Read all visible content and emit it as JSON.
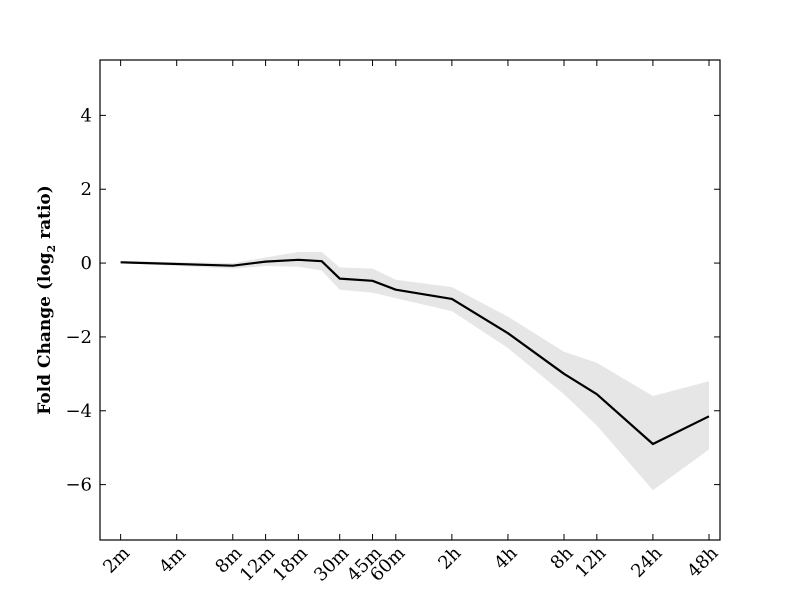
{
  "chart_data": {
    "type": "line",
    "title": "",
    "xlabel": "",
    "ylabel": "Fold Change (log",
    "ylabel_sub": "2",
    "ylabel_tail": " ratio)",
    "x": [
      "2m",
      "4m",
      "8m",
      "12m",
      "18m",
      "30m",
      "45m",
      "60m",
      "2h",
      "4h",
      "8h",
      "12h",
      "24h",
      "48h"
    ],
    "x_minutes": [
      2,
      4,
      8,
      12,
      18,
      30,
      45,
      60,
      120,
      240,
      480,
      720,
      1440,
      2880
    ],
    "x_scale": "log",
    "ylim": [
      -7.5,
      5.5
    ],
    "yticks": [
      -6,
      -4,
      -2,
      0,
      2,
      4
    ],
    "ytick_labels": [
      "−6",
      "−4",
      "−2",
      "0",
      "2",
      "4"
    ],
    "grid": false,
    "series": [
      {
        "color": "#000000",
        "points": [
          {
            "x": 2,
            "y": 0.02
          },
          {
            "x": 8,
            "y": -0.07
          },
          {
            "x": 12,
            "y": 0.04
          },
          {
            "x": 18,
            "y": 0.09
          },
          {
            "x": 24,
            "y": 0.05
          },
          {
            "x": 30,
            "y": -0.42
          },
          {
            "x": 45,
            "y": -0.48
          },
          {
            "x": 60,
            "y": -0.72
          },
          {
            "x": 120,
            "y": -0.97
          },
          {
            "x": 240,
            "y": -1.9
          },
          {
            "x": 480,
            "y": -3.0
          },
          {
            "x": 720,
            "y": -3.55
          },
          {
            "x": 1440,
            "y": -4.9
          },
          {
            "x": 2880,
            "y": -4.15
          }
        ]
      }
    ],
    "band": {
      "color": "#e6e6e6",
      "points": [
        {
          "x": 2,
          "lo": 0.0,
          "hi": 0.05
        },
        {
          "x": 8,
          "lo": -0.15,
          "hi": 0.0
        },
        {
          "x": 12,
          "lo": -0.08,
          "hi": 0.15
        },
        {
          "x": 18,
          "lo": -0.1,
          "hi": 0.3
        },
        {
          "x": 24,
          "lo": -0.2,
          "hi": 0.3
        },
        {
          "x": 30,
          "lo": -0.72,
          "hi": -0.12
        },
        {
          "x": 45,
          "lo": -0.8,
          "hi": -0.15
        },
        {
          "x": 60,
          "lo": -0.95,
          "hi": -0.45
        },
        {
          "x": 120,
          "lo": -1.3,
          "hi": -0.65
        },
        {
          "x": 240,
          "lo": -2.3,
          "hi": -1.45
        },
        {
          "x": 480,
          "lo": -3.55,
          "hi": -2.4
        },
        {
          "x": 720,
          "lo": -4.4,
          "hi": -2.7
        },
        {
          "x": 1440,
          "lo": -6.15,
          "hi": -3.6
        },
        {
          "x": 2880,
          "lo": -5.05,
          "hi": -3.2
        }
      ]
    }
  }
}
